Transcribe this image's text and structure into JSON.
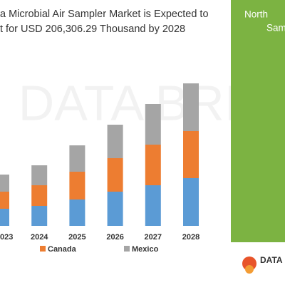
{
  "chart_data": {
    "type": "stacked-bar",
    "title_lines": [
      "a Microbial Air Sampler Market is Expected to",
      "t for USD 206,306.29 Thousand by 2028"
    ],
    "categories": [
      "023",
      "2024",
      "2025",
      "2026",
      "2027",
      "2028"
    ],
    "series": [
      {
        "name": null,
        "color": "#5b9bd5",
        "values": [
          24,
          28,
          37,
          48,
          57,
          67
        ]
      },
      {
        "name": "Canada",
        "color": "#ed7d31",
        "values": [
          24,
          29,
          39,
          47,
          57,
          66
        ]
      },
      {
        "name": "Mexico",
        "color": "#a5a5a5",
        "values": [
          24,
          28,
          37,
          47,
          57,
          67
        ]
      }
    ]
  },
  "watermark": "DATA BRI",
  "side_panel": {
    "lines": [
      "North",
      "Sam"
    ],
    "color": "#7cb342"
  },
  "logo": {
    "text": "DATA"
  }
}
